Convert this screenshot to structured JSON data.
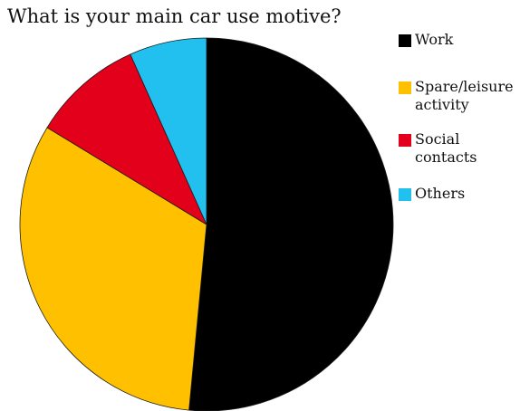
{
  "chart_data": {
    "type": "pie",
    "title": "What is your main car use motive?",
    "categories": [
      "Work",
      "Spare/leisure activity",
      "Social contacts",
      "Others"
    ],
    "values": [
      51.5,
      32.2,
      9.6,
      6.7
    ],
    "colors": [
      "#000000",
      "#FFC000",
      "#E2001A",
      "#21C0EE"
    ],
    "start_angle_deg": 0,
    "direction": "clockwise",
    "legend_position": "right"
  },
  "legend": {
    "items": [
      {
        "label": "Work",
        "color": "#000000"
      },
      {
        "label": "Spare/leisure activity",
        "color": "#FFC000"
      },
      {
        "label": "Social contacts",
        "color": "#E2001A"
      },
      {
        "label": "Others",
        "color": "#21C0EE"
      }
    ]
  }
}
